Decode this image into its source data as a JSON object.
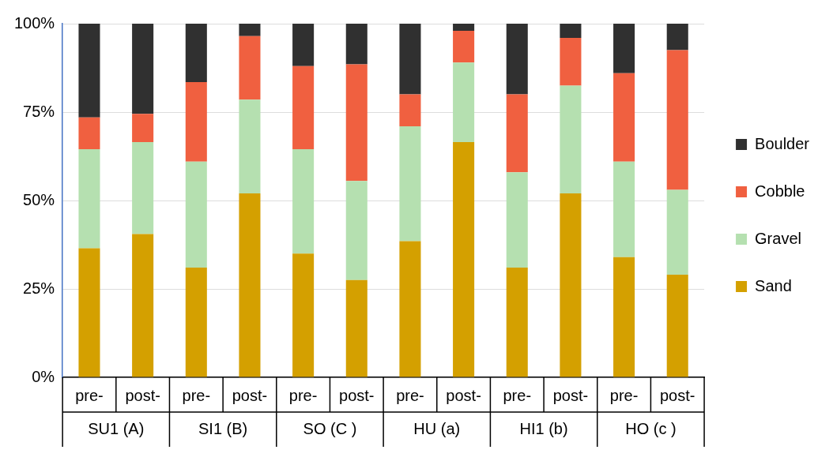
{
  "chart_data": {
    "type": "bar",
    "stacked": true,
    "categories": [
      "pre-",
      "post-",
      "pre-",
      "post-",
      "pre-",
      "post-",
      "pre-",
      "post-",
      "pre-",
      "post-",
      "pre-",
      "post-"
    ],
    "annotations": [
      "SU1 (A)",
      "SI1 (B)",
      "SO (C )",
      "HU (a)",
      "HI1 (b)",
      "HO (c )"
    ],
    "series": [
      {
        "name": "Sand",
        "color": "#d4a000",
        "values": [
          36.5,
          40.5,
          31,
          52,
          35,
          27.5,
          38.5,
          66.5,
          31,
          52,
          34,
          29
        ]
      },
      {
        "name": "Gravel",
        "color": "#b5e0b0",
        "values": [
          28,
          26,
          30,
          26.5,
          29.5,
          28,
          32.5,
          22.5,
          27,
          30.5,
          27,
          24
        ]
      },
      {
        "name": "Cobble",
        "color": "#f06040",
        "values": [
          9,
          8,
          22.5,
          18,
          23.5,
          33,
          9,
          9,
          22,
          13.5,
          25,
          39.5
        ]
      },
      {
        "name": "Boulder",
        "color": "#303030",
        "values": [
          26.5,
          25.5,
          16.5,
          3.5,
          12,
          11.5,
          20,
          2,
          20,
          4,
          14,
          7.5
        ]
      }
    ],
    "ylim": [
      0,
      100
    ],
    "yticks": [
      {
        "value": 0,
        "label": "0%"
      },
      {
        "value": 25,
        "label": "25%"
      },
      {
        "value": 50,
        "label": "50%"
      },
      {
        "value": 75,
        "label": "75%"
      },
      {
        "value": 100,
        "label": "100%"
      }
    ],
    "grid": "y",
    "legend": "right"
  }
}
